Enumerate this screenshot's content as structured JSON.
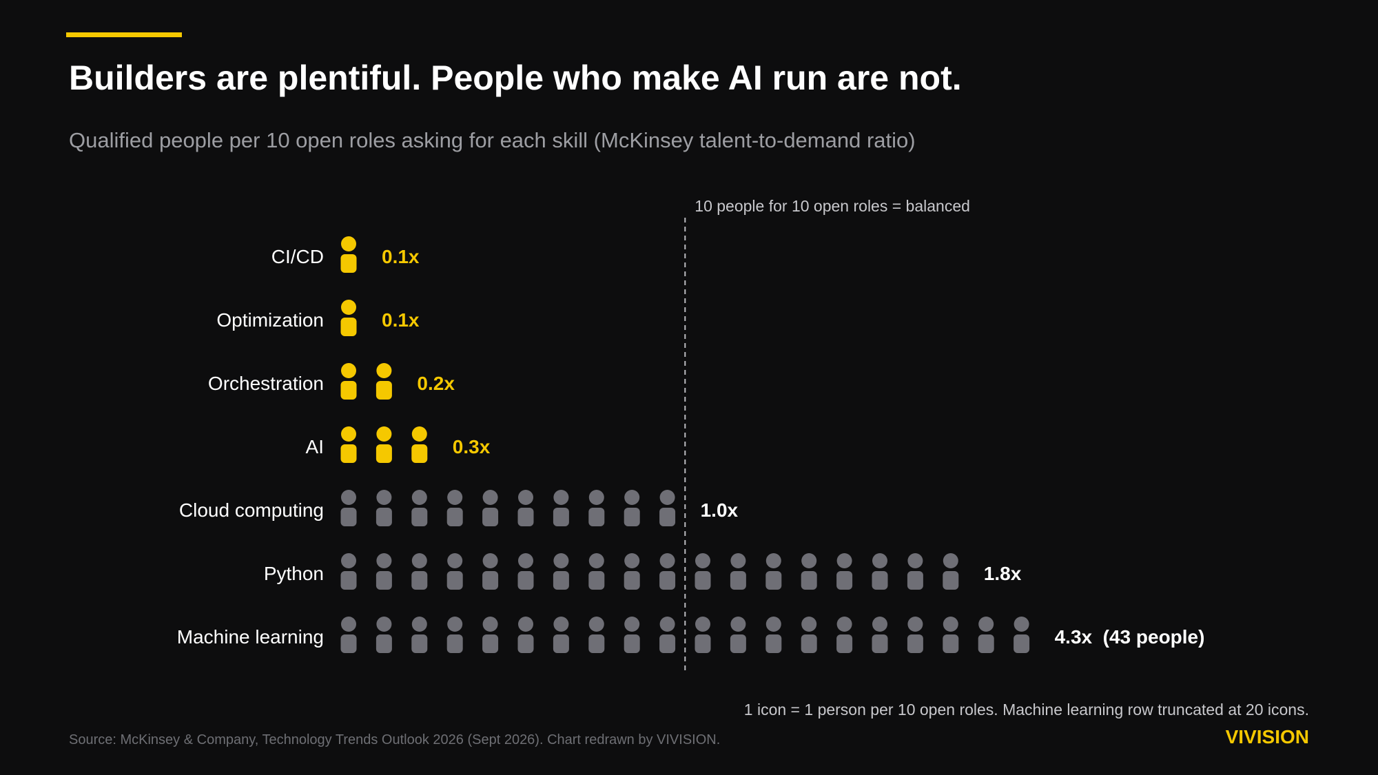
{
  "title": "Builders are plentiful. People who make AI run are not.",
  "subtitle": "Qualified people per 10 open roles asking for each skill (McKinsey talent-to-demand ratio)",
  "footnote": "1 icon = 1 person per 10 open roles. Machine learning row truncated at 20 icons.",
  "source": "Source: McKinsey & Company, Technology Trends Outlook 2026 (Sept 2026). Chart redrawn by VIVISION.",
  "brand": "VIVISION",
  "colors": {
    "background": "#0d0d0e",
    "accent": "#f5c800",
    "short_supply": "#f5c800",
    "sufficient_supply": "#6f6f76",
    "label_text": "#ffffff",
    "reference_line": "#bdbdc2"
  },
  "icon": "person-icon",
  "chart_data": {
    "type": "pictogram",
    "title": "Builders are plentiful. People who make AI run are not.",
    "subtitle": "Qualified people per 10 open roles asking for each skill (McKinsey talent-to-demand ratio)",
    "categories": [
      "CI/CD",
      "Optimization",
      "Orchestration",
      "AI",
      "Cloud computing",
      "Python",
      "Machine learning"
    ],
    "values": [
      0.1,
      0.1,
      0.2,
      0.3,
      1.0,
      1.8,
      4.3
    ],
    "icon_counts": [
      1,
      1,
      2,
      3,
      10,
      18,
      20
    ],
    "value_labels": [
      "0.1x",
      "0.1x",
      "0.2x",
      "0.3x",
      "1.0x",
      "1.8x",
      "4.3x  (43 people)"
    ],
    "highlight": [
      true,
      true,
      true,
      true,
      false,
      false,
      false
    ],
    "reference_line": {
      "value": 1.0,
      "label": "10 people for 10 open roles = balanced"
    },
    "grid": false
  }
}
